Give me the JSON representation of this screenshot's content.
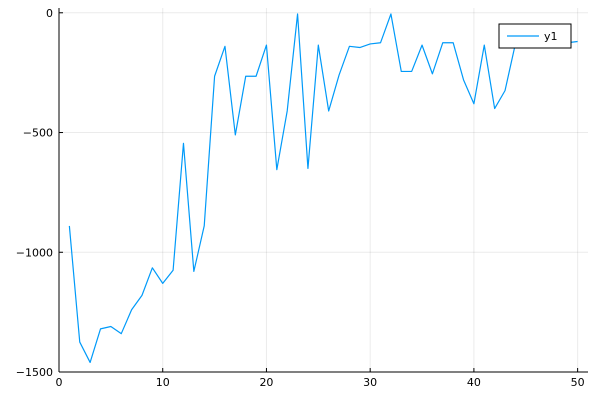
{
  "chart_data": {
    "type": "line",
    "title": "",
    "xlabel": "",
    "ylabel": "",
    "xlim": [
      0,
      51
    ],
    "ylim": [
      -1500,
      20
    ],
    "xticks": [
      0,
      10,
      20,
      30,
      40,
      50
    ],
    "yticks": [
      -1500,
      -1000,
      -500,
      0
    ],
    "xtick_labels": [
      "0",
      "10",
      "20",
      "30",
      "40",
      "50"
    ],
    "ytick_labels": [
      "−1500",
      "−1000",
      "−500",
      "0"
    ],
    "grid": true,
    "legend_position": "top-right",
    "series": [
      {
        "name": "y1",
        "color": "#009af9",
        "x": [
          1,
          2,
          3,
          4,
          5,
          6,
          7,
          8,
          9,
          10,
          11,
          12,
          13,
          14,
          15,
          16,
          17,
          18,
          19,
          20,
          21,
          22,
          23,
          24,
          25,
          26,
          27,
          28,
          29,
          30,
          31,
          32,
          33,
          34,
          35,
          36,
          37,
          38,
          39,
          40,
          41,
          42,
          43,
          44,
          45,
          46,
          47,
          48,
          49,
          50
        ],
        "y": [
          -890,
          -1375,
          -1460,
          -1320,
          -1310,
          -1340,
          -1240,
          -1180,
          -1065,
          -1130,
          -1075,
          -545,
          -1080,
          -890,
          -265,
          -140,
          -510,
          -265,
          -265,
          -135,
          -655,
          -410,
          -5,
          -650,
          -135,
          -410,
          -260,
          -140,
          -145,
          -130,
          -125,
          -5,
          -245,
          -245,
          -135,
          -255,
          -125,
          -125,
          -280,
          -380,
          -135,
          -400,
          -325,
          -130,
          -130,
          -120,
          -115,
          -120,
          -125,
          -120
        ]
      }
    ]
  }
}
